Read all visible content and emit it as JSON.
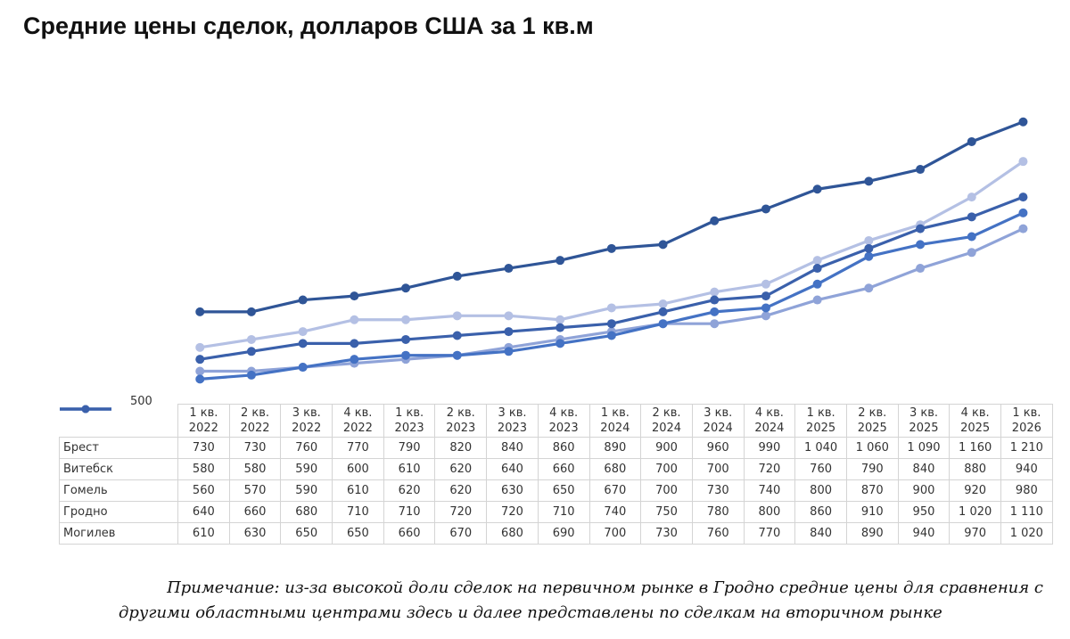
{
  "title": "Средние цены сделок, долларов США за 1 кв.м",
  "note_line1": "Примечание: из-за высокой доли сделок на первичном рынке в Гродно средние цены для сравнения с",
  "note_line2": "другими областными центрами здесь и далее представлены по сделкам на вторичном рынке",
  "chart_data": {
    "type": "line",
    "title": "Средние цены сделок, долларов США за 1 кв.м",
    "ylim": [
      500,
      1300
    ],
    "y_tick_labels": [
      "500"
    ],
    "categories": [
      [
        "1 кв.",
        "2022"
      ],
      [
        "2 кв.",
        "2022"
      ],
      [
        "3 кв.",
        "2022"
      ],
      [
        "4 кв.",
        "2022"
      ],
      [
        "1 кв.",
        "2023"
      ],
      [
        "2 кв.",
        "2023"
      ],
      [
        "3 кв.",
        "2023"
      ],
      [
        "4 кв.",
        "2023"
      ],
      [
        "1 кв.",
        "2024"
      ],
      [
        "2 кв.",
        "2024"
      ],
      [
        "3 кв.",
        "2024"
      ],
      [
        "4 кв.",
        "2024"
      ],
      [
        "1 кв.",
        "2025"
      ],
      [
        "2 кв.",
        "2025"
      ],
      [
        "3 кв.",
        "2025"
      ],
      [
        "4 кв.",
        "2025"
      ],
      [
        "1 кв.",
        "2026"
      ]
    ],
    "series": [
      {
        "name": "Брест",
        "color": "#2f5597",
        "values": [
          730,
          730,
          760,
          770,
          790,
          820,
          840,
          860,
          890,
          900,
          960,
          990,
          1040,
          1060,
          1090,
          1160,
          1210
        ],
        "labels": [
          "730",
          "730",
          "760",
          "770",
          "790",
          "820",
          "840",
          "860",
          "890",
          "900",
          "960",
          "990",
          "1 040",
          "1 060",
          "1 090",
          "1 160",
          "1 210"
        ]
      },
      {
        "name": "Витебск",
        "color": "#8fa3d8",
        "values": [
          580,
          580,
          590,
          600,
          610,
          620,
          640,
          660,
          680,
          700,
          700,
          720,
          760,
          790,
          840,
          880,
          940
        ],
        "labels": [
          "580",
          "580",
          "590",
          "600",
          "610",
          "620",
          "640",
          "660",
          "680",
          "700",
          "700",
          "720",
          "760",
          "790",
          "840",
          "880",
          "940"
        ]
      },
      {
        "name": "Гомель",
        "color": "#4472c4",
        "values": [
          560,
          570,
          590,
          610,
          620,
          620,
          630,
          650,
          670,
          700,
          730,
          740,
          800,
          870,
          900,
          920,
          980
        ],
        "labels": [
          "560",
          "570",
          "590",
          "610",
          "620",
          "620",
          "630",
          "650",
          "670",
          "700",
          "730",
          "740",
          "800",
          "870",
          "900",
          "920",
          "980"
        ]
      },
      {
        "name": "Гродно",
        "color": "#b4c0e4",
        "values": [
          640,
          660,
          680,
          710,
          710,
          720,
          720,
          710,
          740,
          750,
          780,
          800,
          860,
          910,
          950,
          1020,
          1110
        ],
        "labels": [
          "640",
          "660",
          "680",
          "710",
          "710",
          "720",
          "720",
          "710",
          "740",
          "750",
          "780",
          "800",
          "860",
          "910",
          "950",
          "1 020",
          "1 110"
        ]
      },
      {
        "name": "Могилев",
        "color": "#3a60ab",
        "values": [
          610,
          630,
          650,
          650,
          660,
          670,
          680,
          690,
          700,
          730,
          760,
          770,
          840,
          890,
          940,
          970,
          1020
        ],
        "labels": [
          "610",
          "630",
          "650",
          "650",
          "660",
          "670",
          "680",
          "690",
          "700",
          "730",
          "760",
          "770",
          "840",
          "890",
          "940",
          "970",
          "1 020"
        ]
      }
    ],
    "legend": "table-bottom",
    "grid": false
  }
}
